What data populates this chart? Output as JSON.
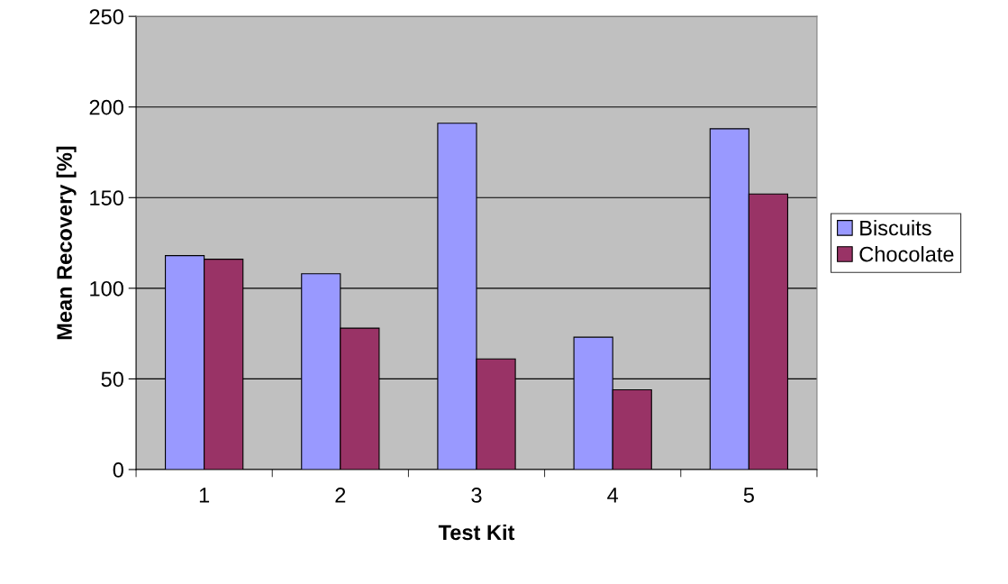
{
  "chart_data": {
    "type": "bar",
    "xlabel": "Test Kit",
    "ylabel": "Mean Recovery [%]",
    "categories": [
      "1",
      "2",
      "3",
      "4",
      "5"
    ],
    "series": [
      {
        "name": "Biscuits",
        "color": "#9999ff",
        "values": [
          118,
          108,
          191,
          73,
          188
        ]
      },
      {
        "name": "Chocolate",
        "color": "#993366",
        "values": [
          116,
          78,
          61,
          44,
          152
        ]
      }
    ],
    "ylim": [
      0,
      250
    ],
    "yticks": [
      0,
      50,
      100,
      150,
      200,
      250
    ],
    "grid": "y",
    "legend": "right"
  }
}
